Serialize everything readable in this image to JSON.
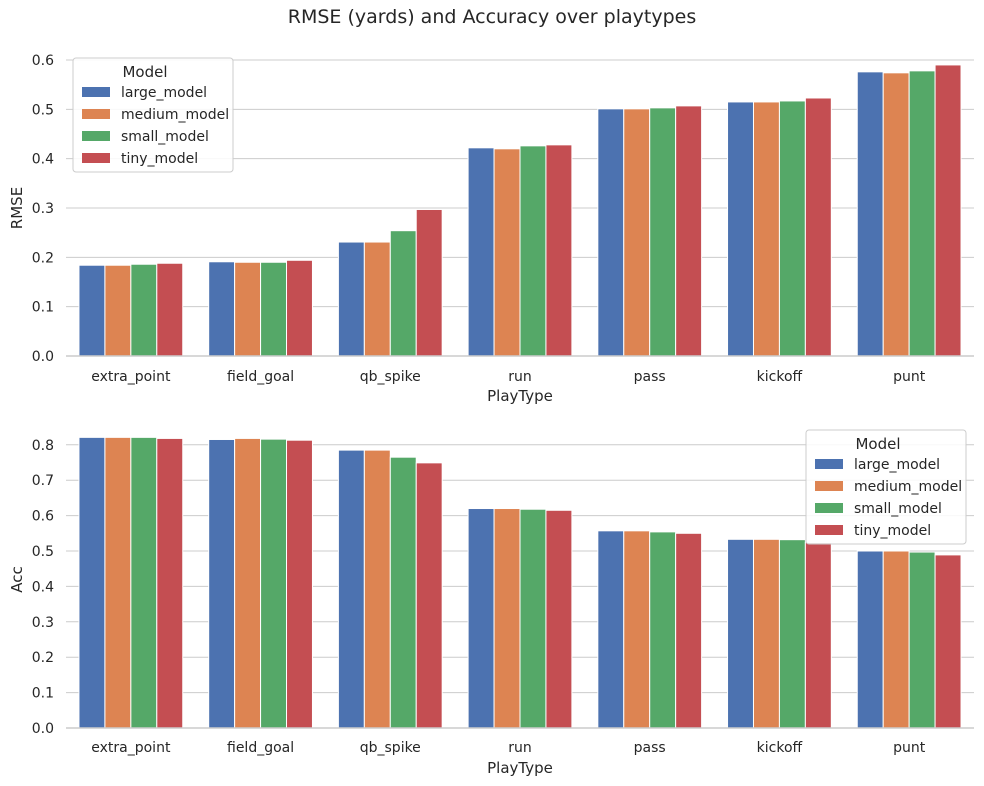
{
  "title": "RMSE (yards) and Accuracy over playtypes",
  "legend_title": "Model",
  "colors": {
    "large_model": "#4c72b0",
    "medium_model": "#dd8452",
    "small_model": "#55a868",
    "tiny_model": "#c44e52",
    "grid": "#cccccc",
    "text": "#262626"
  },
  "chart_data": [
    {
      "type": "bar",
      "xlabel": "PlayType",
      "ylabel": "RMSE",
      "categories": [
        "extra_point",
        "field_goal",
        "qb_spike",
        "run",
        "pass",
        "kickoff",
        "punt"
      ],
      "ylim": [
        0,
        0.6
      ],
      "yticks": [
        "0.0",
        "0.1",
        "0.2",
        "0.3",
        "0.4",
        "0.5",
        "0.6"
      ],
      "grid": "horizontal",
      "legend_position": "top-left",
      "series": [
        {
          "name": "large_model",
          "values": [
            0.184,
            0.191,
            0.231,
            0.422,
            0.501,
            0.515,
            0.576
          ]
        },
        {
          "name": "medium_model",
          "values": [
            0.184,
            0.19,
            0.231,
            0.42,
            0.501,
            0.515,
            0.574
          ]
        },
        {
          "name": "small_model",
          "values": [
            0.186,
            0.19,
            0.254,
            0.426,
            0.503,
            0.517,
            0.578
          ]
        },
        {
          "name": "tiny_model",
          "values": [
            0.188,
            0.194,
            0.297,
            0.428,
            0.507,
            0.523,
            0.59
          ]
        }
      ]
    },
    {
      "type": "bar",
      "xlabel": "PlayType",
      "ylabel": "Acc",
      "categories": [
        "extra_point",
        "field_goal",
        "qb_spike",
        "run",
        "pass",
        "kickoff",
        "punt"
      ],
      "ylim": [
        0,
        0.85
      ],
      "yticks": [
        "0.0",
        "0.1",
        "0.2",
        "0.3",
        "0.4",
        "0.5",
        "0.6",
        "0.7",
        "0.8"
      ],
      "grid": "horizontal",
      "legend_position": "top-right",
      "series": [
        {
          "name": "large_model",
          "values": [
            0.821,
            0.815,
            0.785,
            0.62,
            0.557,
            0.533,
            0.5
          ]
        },
        {
          "name": "medium_model",
          "values": [
            0.821,
            0.818,
            0.785,
            0.62,
            0.557,
            0.533,
            0.5
          ]
        },
        {
          "name": "small_model",
          "values": [
            0.821,
            0.816,
            0.765,
            0.618,
            0.554,
            0.532,
            0.497
          ]
        },
        {
          "name": "tiny_model",
          "values": [
            0.818,
            0.813,
            0.749,
            0.615,
            0.55,
            0.524,
            0.489
          ]
        }
      ]
    }
  ]
}
